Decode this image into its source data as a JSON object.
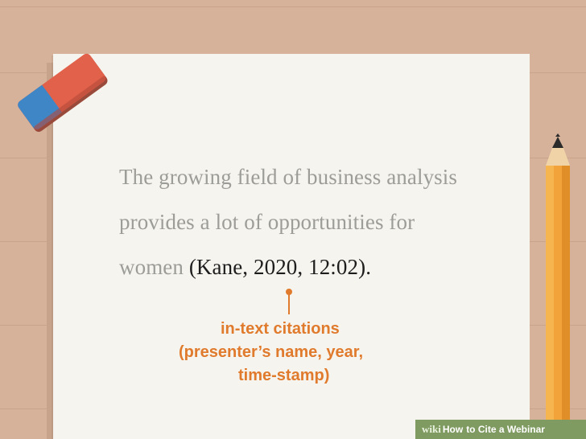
{
  "paper": {
    "line1": "The growing field of business analysis",
    "line2": "provides a lot of opportunities for",
    "line3_plain": "women ",
    "line3_citation": "(Kane, 2020, 12:02)",
    "line3_end": "."
  },
  "callout": {
    "line1": "in-text citations",
    "line2": "(presenter’s name, year,",
    "line3": "time-stamp)"
  },
  "colors": {
    "accent": "#e07a2c",
    "background": "#d7b29b",
    "paper": "#f6f4ee"
  },
  "watermark": {
    "wiki": "wiki",
    "how": "How",
    "rest": "to Cite a Webinar"
  },
  "icons": [
    "eraser-icon",
    "pencil-icon"
  ]
}
